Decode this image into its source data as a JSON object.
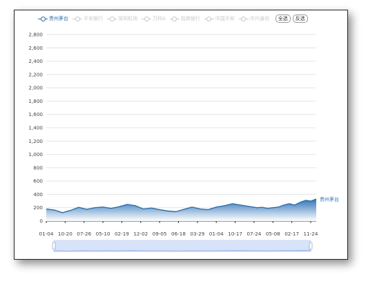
{
  "legend": {
    "items": [
      {
        "name": "贵州茅台",
        "active": true,
        "color": "#2c6ea9"
      },
      {
        "name": "平安银行",
        "active": false,
        "color": "#c8c8c8"
      },
      {
        "name": "深圳机场",
        "active": false,
        "color": "#c8c8c8"
      },
      {
        "name": "万科A",
        "active": false,
        "color": "#c8c8c8"
      },
      {
        "name": "招商银行",
        "active": false,
        "color": "#c8c8c8"
      },
      {
        "name": "中国平安",
        "active": false,
        "color": "#c8c8c8"
      },
      {
        "name": "中兴通讯",
        "active": false,
        "color": "#c8c8c8"
      }
    ],
    "select_all": "全选",
    "invert": "反选"
  },
  "chart_data": {
    "type": "area",
    "series": [
      {
        "name": "贵州茅台",
        "x": [
          0,
          15,
          30,
          45,
          60,
          75,
          90,
          105,
          120,
          135,
          150,
          165,
          180,
          195,
          210,
          225,
          240,
          255,
          270,
          285,
          300,
          315,
          330,
          345,
          360,
          375,
          390,
          400,
          410,
          420,
          430,
          440,
          450,
          460,
          470,
          480,
          490,
          500
        ],
        "y": [
          180,
          165,
          125,
          160,
          205,
          175,
          200,
          210,
          190,
          215,
          250,
          230,
          180,
          195,
          170,
          150,
          140,
          175,
          210,
          180,
          170,
          210,
          230,
          260,
          240,
          220,
          200,
          205,
          190,
          200,
          210,
          240,
          260,
          240,
          280,
          310,
          300,
          330
        ],
        "x_range": [
          0,
          500
        ]
      }
    ],
    "x_tick_labels": [
      "01-04",
      "10-20",
      "07-26",
      "05-10",
      "02-19",
      "12-02",
      "09-05",
      "06-18",
      "03-29",
      "01-04",
      "10-17",
      "07-24",
      "05-08",
      "02-17",
      "11-24"
    ],
    "y_ticks": [
      0,
      200,
      400,
      600,
      800,
      1000,
      1200,
      1400,
      1600,
      1800,
      2000,
      2200,
      2400,
      2600,
      2800
    ],
    "ylim": [
      0,
      2800
    ],
    "grid": "horizontal",
    "series_end_label": "贵州茅台",
    "line_color": "#2c6ea9",
    "area_top_color": "#2f73b8",
    "area_bottom_color": "#ffffff",
    "datazoom": {
      "start_fraction": 0.0,
      "end_fraction": 1.0
    }
  }
}
